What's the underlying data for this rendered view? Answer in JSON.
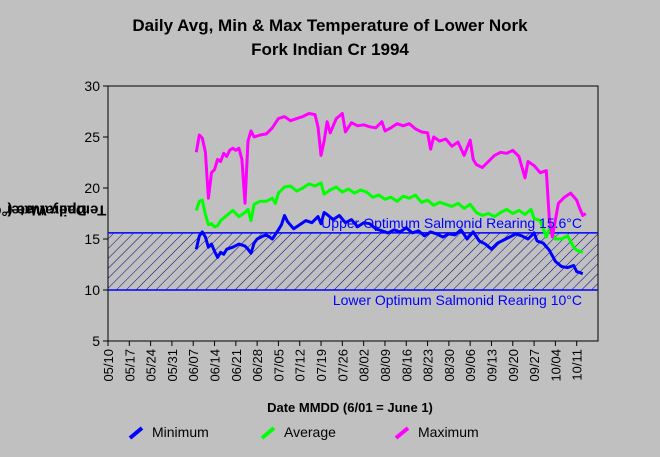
{
  "chart_data": {
    "type": "line",
    "title": "Daily Avg, Min & Max Temperature of Lower Nork Fork Indian Cr 1994",
    "title_lines": [
      "Daily Avg, Min & Max Temperature of Lower Nork",
      "Fork Indian Cr 1994"
    ],
    "xlabel": "Date MMDD (6/01 = June 1)",
    "ylabel_lines": [
      "Daily Water",
      "Temperature (°C)"
    ],
    "ylim": [
      5,
      30
    ],
    "yticks": [
      5,
      10,
      15,
      20,
      25,
      30
    ],
    "x_ticks": [
      "05/10",
      "05/17",
      "05/24",
      "05/31",
      "06/07",
      "06/14",
      "06/21",
      "06/28",
      "07/05",
      "07/12",
      "07/19",
      "07/26",
      "08/02",
      "08/09",
      "08/16",
      "08/23",
      "08/30",
      "09/06",
      "09/13",
      "09/20",
      "09/27",
      "10/04",
      "10/11"
    ],
    "x_start_tick": "05/10",
    "x_end_date": "10/18",
    "band": {
      "lower": 10,
      "upper": 15.6,
      "lower_label": "Lower Optimum Salmonid Rearing 10°C",
      "upper_label": "Upper Optimum Salmonid Rearing 15.6°C"
    },
    "series": [
      {
        "name": "Minimum",
        "color": "#0000ff",
        "points": [
          [
            "06/08",
            14.0
          ],
          [
            "06/09",
            15.3
          ],
          [
            "06/10",
            15.7
          ],
          [
            "06/11",
            15.2
          ],
          [
            "06/12",
            14.2
          ],
          [
            "06/13",
            14.5
          ],
          [
            "06/14",
            13.8
          ],
          [
            "06/15",
            13.2
          ],
          [
            "06/16",
            13.7
          ],
          [
            "06/17",
            13.5
          ],
          [
            "06/18",
            14.0
          ],
          [
            "06/20",
            14.2
          ],
          [
            "06/22",
            14.5
          ],
          [
            "06/24",
            14.3
          ],
          [
            "06/25",
            14.0
          ],
          [
            "06/26",
            13.6
          ],
          [
            "06/27",
            14.6
          ],
          [
            "06/28",
            15.0
          ],
          [
            "06/30",
            15.3
          ],
          [
            "07/01",
            15.4
          ],
          [
            "07/03",
            15.0
          ],
          [
            "07/05",
            15.9
          ],
          [
            "07/06",
            16.4
          ],
          [
            "07/07",
            17.3
          ],
          [
            "07/08",
            16.7
          ],
          [
            "07/10",
            16.0
          ],
          [
            "07/12",
            16.4
          ],
          [
            "07/14",
            16.8
          ],
          [
            "07/16",
            16.6
          ],
          [
            "07/18",
            17.2
          ],
          [
            "07/19",
            16.5
          ],
          [
            "07/20",
            17.6
          ],
          [
            "07/21",
            17.4
          ],
          [
            "07/23",
            16.9
          ],
          [
            "07/25",
            17.3
          ],
          [
            "07/27",
            16.6
          ],
          [
            "07/29",
            16.9
          ],
          [
            "07/31",
            16.2
          ],
          [
            "08/02",
            16.6
          ],
          [
            "08/04",
            16.5
          ],
          [
            "08/06",
            16.0
          ],
          [
            "08/08",
            15.8
          ],
          [
            "08/10",
            15.6
          ],
          [
            "08/12",
            15.9
          ],
          [
            "08/14",
            15.7
          ],
          [
            "08/16",
            16.1
          ],
          [
            "08/18",
            15.6
          ],
          [
            "08/20",
            15.8
          ],
          [
            "08/22",
            15.3
          ],
          [
            "08/24",
            15.7
          ],
          [
            "08/26",
            15.5
          ],
          [
            "08/28",
            15.2
          ],
          [
            "08/30",
            15.5
          ],
          [
            "09/01",
            15.4
          ],
          [
            "09/03",
            15.9
          ],
          [
            "09/05",
            15.0
          ],
          [
            "09/07",
            15.7
          ],
          [
            "09/09",
            14.8
          ],
          [
            "09/11",
            14.5
          ],
          [
            "09/13",
            14.0
          ],
          [
            "09/15",
            14.6
          ],
          [
            "09/17",
            14.9
          ],
          [
            "09/19",
            15.2
          ],
          [
            "09/21",
            15.5
          ],
          [
            "09/23",
            15.3
          ],
          [
            "09/25",
            15.0
          ],
          [
            "09/27",
            15.6
          ],
          [
            "09/28",
            14.8
          ],
          [
            "09/30",
            14.6
          ],
          [
            "10/02",
            13.9
          ],
          [
            "10/04",
            12.8
          ],
          [
            "10/06",
            12.3
          ],
          [
            "10/08",
            12.2
          ],
          [
            "10/10",
            12.4
          ],
          [
            "10/11",
            11.8
          ],
          [
            "10/13",
            11.6
          ]
        ]
      },
      {
        "name": "Average",
        "color": "#00ff00",
        "points": [
          [
            "06/08",
            17.8
          ],
          [
            "06/09",
            18.7
          ],
          [
            "06/10",
            18.8
          ],
          [
            "06/11",
            17.4
          ],
          [
            "06/12",
            16.4
          ],
          [
            "06/13",
            16.5
          ],
          [
            "06/14",
            16.2
          ],
          [
            "06/15",
            16.3
          ],
          [
            "06/16",
            16.8
          ],
          [
            "06/18",
            17.3
          ],
          [
            "06/20",
            17.8
          ],
          [
            "06/22",
            17.2
          ],
          [
            "06/24",
            17.6
          ],
          [
            "06/25",
            17.9
          ],
          [
            "06/26",
            16.8
          ],
          [
            "06/27",
            18.4
          ],
          [
            "06/29",
            18.7
          ],
          [
            "07/01",
            18.7
          ],
          [
            "07/03",
            19.0
          ],
          [
            "07/04",
            18.5
          ],
          [
            "07/05",
            19.5
          ],
          [
            "07/07",
            20.1
          ],
          [
            "07/09",
            20.2
          ],
          [
            "07/11",
            19.7
          ],
          [
            "07/13",
            20.0
          ],
          [
            "07/15",
            20.4
          ],
          [
            "07/17",
            20.2
          ],
          [
            "07/19",
            20.5
          ],
          [
            "07/20",
            19.4
          ],
          [
            "07/22",
            19.8
          ],
          [
            "07/24",
            20.1
          ],
          [
            "07/26",
            19.6
          ],
          [
            "07/28",
            19.9
          ],
          [
            "07/30",
            19.5
          ],
          [
            "08/01",
            19.8
          ],
          [
            "08/03",
            19.6
          ],
          [
            "08/05",
            19.1
          ],
          [
            "08/07",
            19.3
          ],
          [
            "08/09",
            18.9
          ],
          [
            "08/11",
            19.1
          ],
          [
            "08/13",
            18.7
          ],
          [
            "08/15",
            19.2
          ],
          [
            "08/17",
            19.0
          ],
          [
            "08/19",
            19.3
          ],
          [
            "08/21",
            18.6
          ],
          [
            "08/23",
            18.8
          ],
          [
            "08/25",
            18.3
          ],
          [
            "08/27",
            18.6
          ],
          [
            "08/29",
            18.4
          ],
          [
            "08/31",
            18.2
          ],
          [
            "09/02",
            18.5
          ],
          [
            "09/04",
            18.0
          ],
          [
            "09/06",
            18.4
          ],
          [
            "09/08",
            17.6
          ],
          [
            "09/10",
            17.3
          ],
          [
            "09/12",
            17.5
          ],
          [
            "09/14",
            17.2
          ],
          [
            "09/16",
            17.6
          ],
          [
            "09/18",
            17.9
          ],
          [
            "09/20",
            17.5
          ],
          [
            "09/22",
            17.8
          ],
          [
            "09/24",
            17.4
          ],
          [
            "09/26",
            17.9
          ],
          [
            "09/27",
            17.0
          ],
          [
            "09/29",
            16.8
          ],
          [
            "10/01",
            15.2
          ],
          [
            "10/02",
            16.0
          ],
          [
            "10/04",
            15.0
          ],
          [
            "10/06",
            15.0
          ],
          [
            "10/08",
            15.3
          ],
          [
            "10/10",
            14.2
          ],
          [
            "10/11",
            13.9
          ],
          [
            "10/13",
            13.7
          ]
        ]
      },
      {
        "name": "Maximum",
        "color": "#ff00ff",
        "points": [
          [
            "06/08",
            23.5
          ],
          [
            "06/09",
            25.2
          ],
          [
            "06/10",
            24.9
          ],
          [
            "06/11",
            23.5
          ],
          [
            "06/12",
            19.0
          ],
          [
            "06/13",
            21.5
          ],
          [
            "06/14",
            21.8
          ],
          [
            "06/15",
            22.8
          ],
          [
            "06/16",
            22.6
          ],
          [
            "06/17",
            23.4
          ],
          [
            "06/18",
            23.1
          ],
          [
            "06/19",
            23.7
          ],
          [
            "06/20",
            23.9
          ],
          [
            "06/21",
            23.7
          ],
          [
            "06/22",
            23.9
          ],
          [
            "06/23",
            22.8
          ],
          [
            "06/24",
            18.5
          ],
          [
            "06/25",
            24.6
          ],
          [
            "06/26",
            25.6
          ],
          [
            "06/27",
            25.0
          ],
          [
            "06/29",
            25.2
          ],
          [
            "07/01",
            25.3
          ],
          [
            "07/03",
            25.9
          ],
          [
            "07/05",
            26.8
          ],
          [
            "07/07",
            27.0
          ],
          [
            "07/09",
            26.6
          ],
          [
            "07/11",
            26.8
          ],
          [
            "07/13",
            27.0
          ],
          [
            "07/15",
            27.3
          ],
          [
            "07/17",
            27.2
          ],
          [
            "07/18",
            26.0
          ],
          [
            "07/19",
            23.2
          ],
          [
            "07/20",
            24.6
          ],
          [
            "07/21",
            26.5
          ],
          [
            "07/22",
            25.4
          ],
          [
            "07/23",
            26.1
          ],
          [
            "07/24",
            26.8
          ],
          [
            "07/26",
            27.3
          ],
          [
            "07/27",
            25.5
          ],
          [
            "07/29",
            26.4
          ],
          [
            "07/31",
            26.1
          ],
          [
            "08/02",
            26.2
          ],
          [
            "08/04",
            26.0
          ],
          [
            "08/06",
            25.9
          ],
          [
            "08/08",
            26.5
          ],
          [
            "08/09",
            25.6
          ],
          [
            "08/11",
            25.9
          ],
          [
            "08/13",
            26.3
          ],
          [
            "08/15",
            26.1
          ],
          [
            "08/17",
            26.3
          ],
          [
            "08/19",
            25.8
          ],
          [
            "08/21",
            25.5
          ],
          [
            "08/23",
            25.4
          ],
          [
            "08/24",
            23.8
          ],
          [
            "08/25",
            25.0
          ],
          [
            "08/27",
            24.6
          ],
          [
            "08/29",
            24.8
          ],
          [
            "08/31",
            24.1
          ],
          [
            "09/02",
            24.5
          ],
          [
            "09/04",
            23.2
          ],
          [
            "09/06",
            24.7
          ],
          [
            "09/07",
            22.8
          ],
          [
            "09/08",
            22.3
          ],
          [
            "09/10",
            22.0
          ],
          [
            "09/12",
            22.6
          ],
          [
            "09/14",
            23.2
          ],
          [
            "09/16",
            23.5
          ],
          [
            "09/18",
            23.4
          ],
          [
            "09/20",
            23.7
          ],
          [
            "09/22",
            23.1
          ],
          [
            "09/24",
            21.0
          ],
          [
            "09/25",
            22.6
          ],
          [
            "09/27",
            22.2
          ],
          [
            "09/29",
            21.5
          ],
          [
            "10/01",
            21.7
          ],
          [
            "10/02",
            17.0
          ],
          [
            "10/03",
            15.2
          ],
          [
            "10/05",
            18.5
          ],
          [
            "10/07",
            19.1
          ],
          [
            "10/09",
            19.5
          ],
          [
            "10/11",
            18.8
          ],
          [
            "10/12",
            18.0
          ],
          [
            "10/13",
            17.3
          ],
          [
            "10/14",
            17.5
          ]
        ]
      }
    ],
    "grid": false,
    "legend_position": "bottom"
  }
}
